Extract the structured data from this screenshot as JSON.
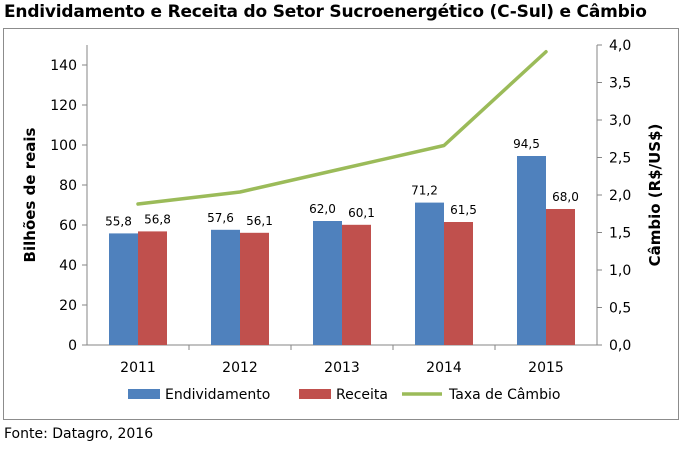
{
  "title": "Endividamento e Receita do Setor Sucroenergético (C-Sul) e Câmbio",
  "source": "Fonte: Datagro, 2016",
  "chart_data": {
    "type": "bar",
    "categories": [
      "2011",
      "2012",
      "2013",
      "2014",
      "2015"
    ],
    "series": [
      {
        "name": "Endividamento",
        "type": "bar",
        "axis": "left",
        "color": "#4f81bd",
        "values": [
          55.8,
          57.6,
          62.0,
          71.2,
          94.5
        ],
        "labels": [
          "55,8",
          "57,6",
          "62,0",
          "71,2",
          "94,5"
        ]
      },
      {
        "name": "Receita",
        "type": "bar",
        "axis": "left",
        "color": "#c0504d",
        "values": [
          56.8,
          56.1,
          60.1,
          61.5,
          68.0
        ],
        "labels": [
          "56,8",
          "56,1",
          "60,1",
          "61,5",
          "68,0"
        ]
      },
      {
        "name": "Taxa de Câmbio",
        "type": "line",
        "axis": "right",
        "color": "#9bbb59",
        "values": [
          1.88,
          2.04,
          2.35,
          2.66,
          3.91
        ]
      }
    ],
    "ylabel": "Bilhões de reais",
    "ylabel_right": "Câmbio (R$/US$)",
    "ylim": [
      0,
      150
    ],
    "ylim_right": [
      0,
      4.0
    ],
    "yticks": [
      "0",
      "20",
      "40",
      "60",
      "80",
      "100",
      "120",
      "140"
    ],
    "yticks_right": [
      "0,0",
      "0,5",
      "1,0",
      "1,5",
      "2,0",
      "2,5",
      "3,0",
      "3,5",
      "4,0"
    ],
    "grid": false,
    "legend_position": "bottom"
  }
}
